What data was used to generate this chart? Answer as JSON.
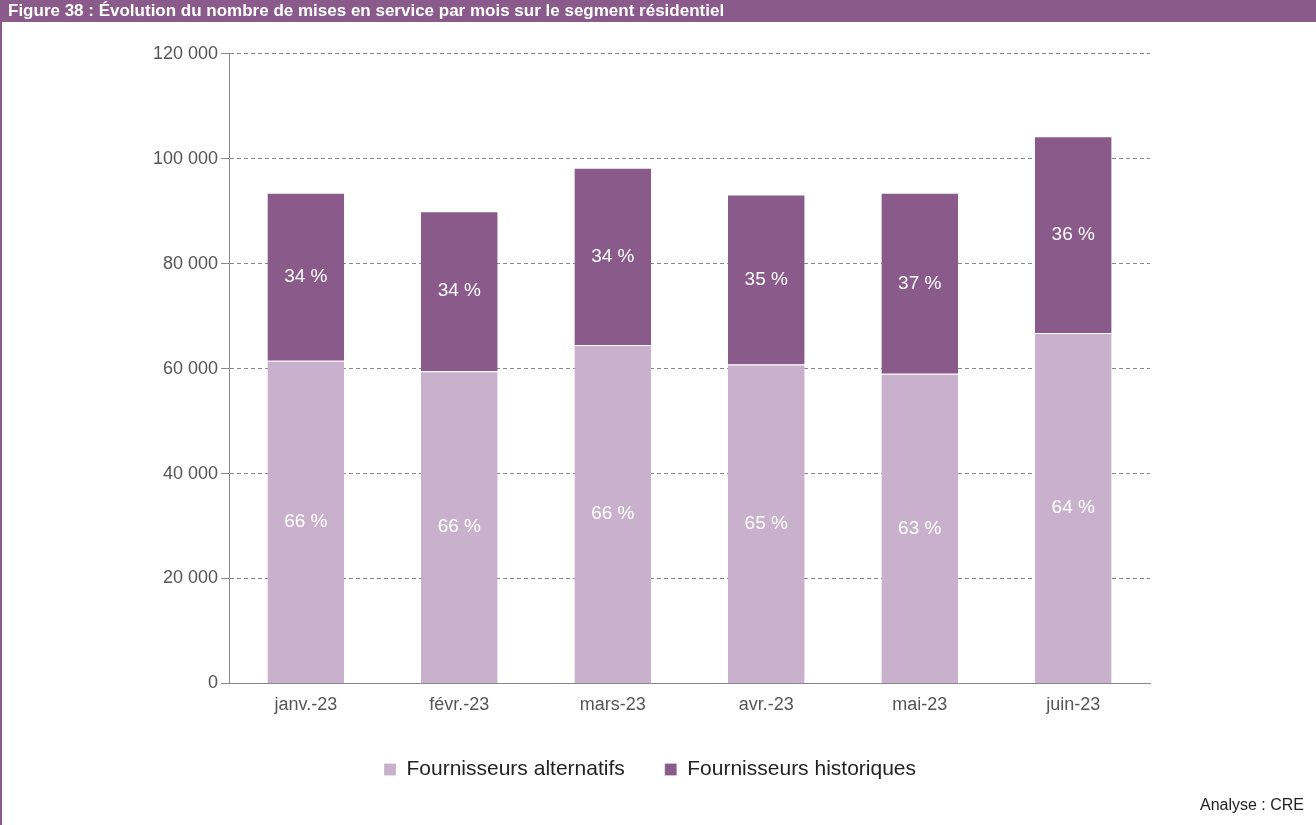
{
  "chart_data": {
    "type": "bar",
    "title": "Figure 38 : Évolution du nombre de mises en service par mois sur le segment résidentiel",
    "categories": [
      "janv.-23",
      "févr.-23",
      "mars-23",
      "avr.-23",
      "mai-23",
      "juin-23"
    ],
    "stacked": true,
    "series": [
      {
        "name": "Fournisseurs alternatifs",
        "color": "#c9b1cd",
        "values": [
          61500,
          59500,
          64500,
          60800,
          59000,
          66800
        ]
      },
      {
        "name": "Fournisseurs historiques",
        "color": "#8a5a8a",
        "values": [
          32000,
          30500,
          33800,
          32400,
          34500,
          37500
        ]
      }
    ],
    "ylim": [
      0,
      120000
    ],
    "yticks": [
      0,
      {
        "value": 20000,
        "label": "20 000"
      },
      {
        "value": 40000,
        "label": "40 000"
      },
      {
        "value": 60000,
        "label": "60 000"
      },
      {
        "value": 80000,
        "label": "80 000"
      },
      {
        "value": 100000,
        "label": "100 000"
      },
      {
        "value": 120000,
        "label": "120 000"
      }
    ],
    "grid": "y",
    "line_style": "dashed",
    "legend": "bottom",
    "annotations": [
      "66 %",
      "66 %",
      "66 %",
      "65 %",
      "63 %",
      "64 %",
      "34 %",
      "34 %",
      "34 %",
      "35 %",
      "37 %",
      "36 %",
      "Analyse : CRE"
    ]
  }
}
